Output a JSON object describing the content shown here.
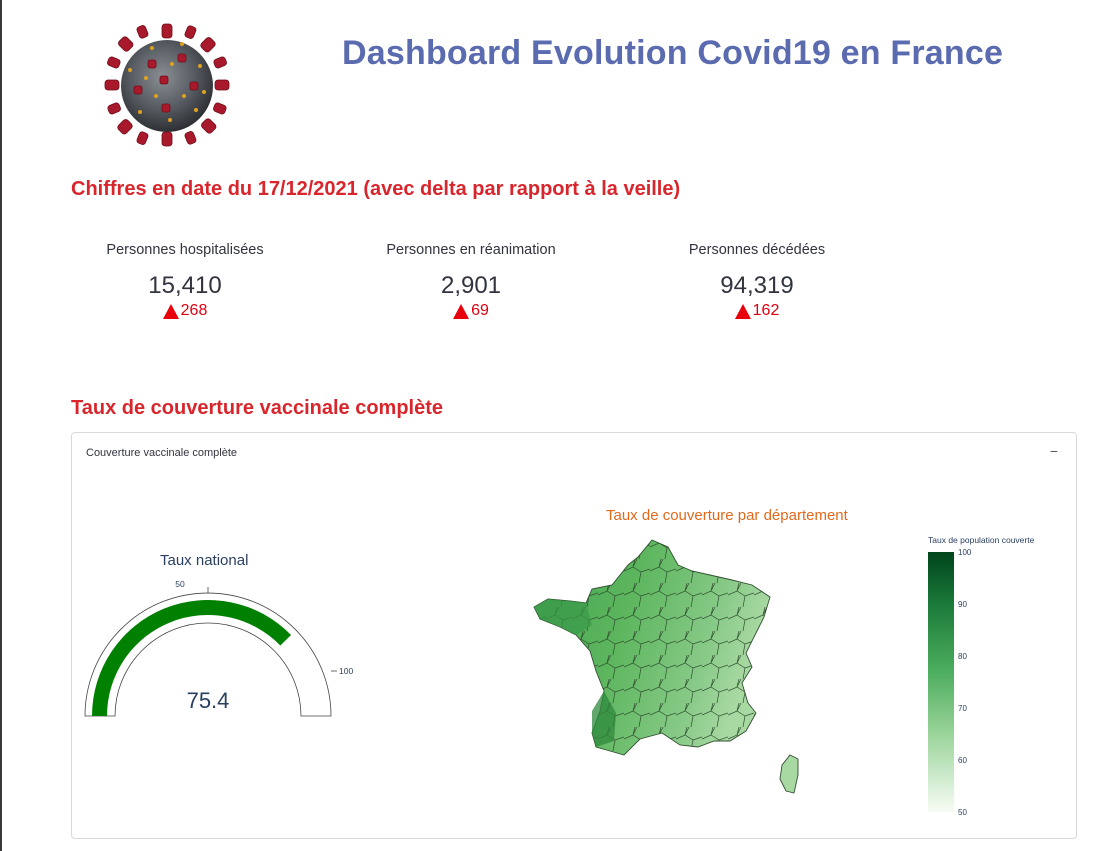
{
  "header": {
    "title": "Dashboard Evolution Covid19 en France"
  },
  "section_figures": {
    "heading": "Chiffres en date du 17/12/2021 (avec delta par rapport à la veille)"
  },
  "metrics": [
    {
      "label": "Personnes hospitalisées",
      "value": "15,410",
      "delta": "268"
    },
    {
      "label": "Personnes en réanimation",
      "value": "2,901",
      "delta": "69"
    },
    {
      "label": "Personnes décédées",
      "value": "94,319",
      "delta": "162"
    }
  ],
  "section_vaccination": {
    "heading": "Taux de couverture vaccinale complète"
  },
  "expander": {
    "label": "Couverture vaccinale complète",
    "toggle": "−"
  },
  "gauge": {
    "title": "Taux national",
    "value": 75.4,
    "value_text": "75.4",
    "min": 0,
    "max": 100,
    "tick_labels": [
      "50",
      "100"
    ],
    "bar_color": "#008000"
  },
  "map": {
    "title": "Taux de couverture par département",
    "colorbar": {
      "title": "Taux de population couverte",
      "ticks": [
        "100",
        "90",
        "80",
        "70",
        "60",
        "50"
      ],
      "color_high": "#00441b",
      "color_low": "#f7fcf5"
    }
  },
  "colors": {
    "title": "#5b6bb0",
    "section_heading": "#d8262c",
    "delta": "#e0000f"
  }
}
